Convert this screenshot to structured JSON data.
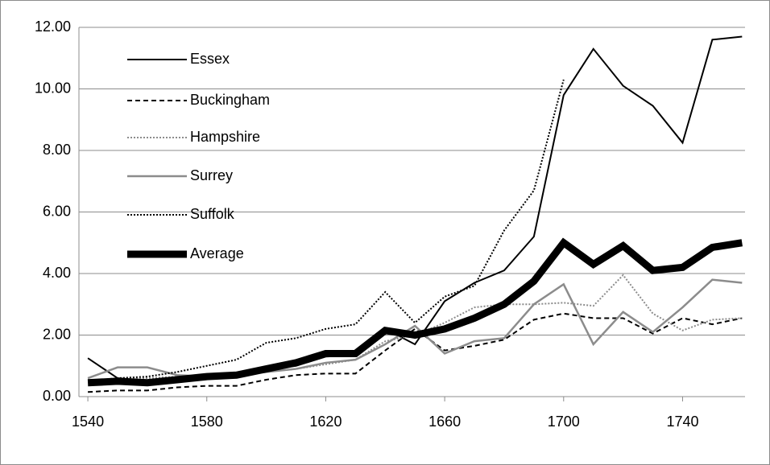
{
  "chart_data": {
    "type": "line",
    "x": [
      1540,
      1550,
      1560,
      1570,
      1580,
      1590,
      1600,
      1610,
      1620,
      1630,
      1640,
      1650,
      1660,
      1670,
      1680,
      1690,
      1700,
      1710,
      1720,
      1730,
      1740,
      1750,
      1760
    ],
    "xlim": [
      1537,
      1761
    ],
    "xticks": [
      1540,
      1580,
      1620,
      1660,
      1700,
      1740
    ],
    "ylim": [
      0,
      12
    ],
    "yticks": [
      {
        "value": 0,
        "label": "0.00"
      },
      {
        "value": 2,
        "label": "2.00"
      },
      {
        "value": 4,
        "label": "4.00"
      },
      {
        "value": 6,
        "label": "6.00"
      },
      {
        "value": 8,
        "label": "8.00"
      },
      {
        "value": 10,
        "label": "10.00"
      },
      {
        "value": 12,
        "label": "12.00"
      }
    ],
    "grid": true,
    "legend": "top-left",
    "series": [
      {
        "name": "Essex",
        "color": "#000000",
        "line_style": "solid",
        "line_width": 2,
        "values": [
          1.25,
          0.6,
          0.5,
          0.6,
          0.7,
          0.75,
          0.9,
          1.0,
          1.3,
          1.35,
          2.2,
          1.7,
          3.1,
          3.7,
          4.1,
          5.2,
          9.8,
          11.3,
          10.1,
          9.45,
          8.25,
          11.6,
          11.7
        ]
      },
      {
        "name": "Buckingham",
        "color": "#000000",
        "line_style": "dashed",
        "line_width": 2,
        "values": [
          0.15,
          0.2,
          0.2,
          0.3,
          0.35,
          0.35,
          0.55,
          0.7,
          0.75,
          0.75,
          1.5,
          2.2,
          1.5,
          1.65,
          1.85,
          2.5,
          2.7,
          2.55,
          2.55,
          2.05,
          2.55,
          2.35,
          2.55
        ]
      },
      {
        "name": "Hampshire",
        "color": "#8c8c8c",
        "line_style": "dotted",
        "line_width": 2,
        "values": [
          0.5,
          0.55,
          0.6,
          0.65,
          0.7,
          0.7,
          0.8,
          0.9,
          1.05,
          1.2,
          1.8,
          2.0,
          2.4,
          2.9,
          3.0,
          3.0,
          3.05,
          2.95,
          3.95,
          2.7,
          2.15,
          2.5,
          2.55
        ]
      },
      {
        "name": "Surrey",
        "color": "#8c8c8c",
        "line_style": "solid",
        "line_width": 2.5,
        "values": [
          0.6,
          0.95,
          0.95,
          0.7,
          0.65,
          0.7,
          0.8,
          0.9,
          1.1,
          1.2,
          1.7,
          2.3,
          1.4,
          1.8,
          1.9,
          3.0,
          3.65,
          1.7,
          2.75,
          2.1,
          2.9,
          3.8,
          3.7
        ]
      },
      {
        "name": "Suffolk",
        "color": "#000000",
        "line_style": "dotted",
        "line_width": 2,
        "values": [
          0.5,
          0.6,
          0.65,
          0.8,
          1.0,
          1.2,
          1.75,
          1.9,
          2.2,
          2.35,
          3.4,
          2.4,
          3.25,
          3.6,
          5.4,
          6.7,
          10.3,
          null,
          null,
          null,
          null,
          null,
          null
        ]
      },
      {
        "name": "Average",
        "color": "#000000",
        "line_style": "solid",
        "line_width": 9,
        "values": [
          0.45,
          0.5,
          0.45,
          0.55,
          0.65,
          0.7,
          0.9,
          1.1,
          1.4,
          1.4,
          2.15,
          2.0,
          2.2,
          2.55,
          3.0,
          3.75,
          5.0,
          4.3,
          4.9,
          4.1,
          4.2,
          4.85,
          5.0
        ]
      }
    ]
  }
}
